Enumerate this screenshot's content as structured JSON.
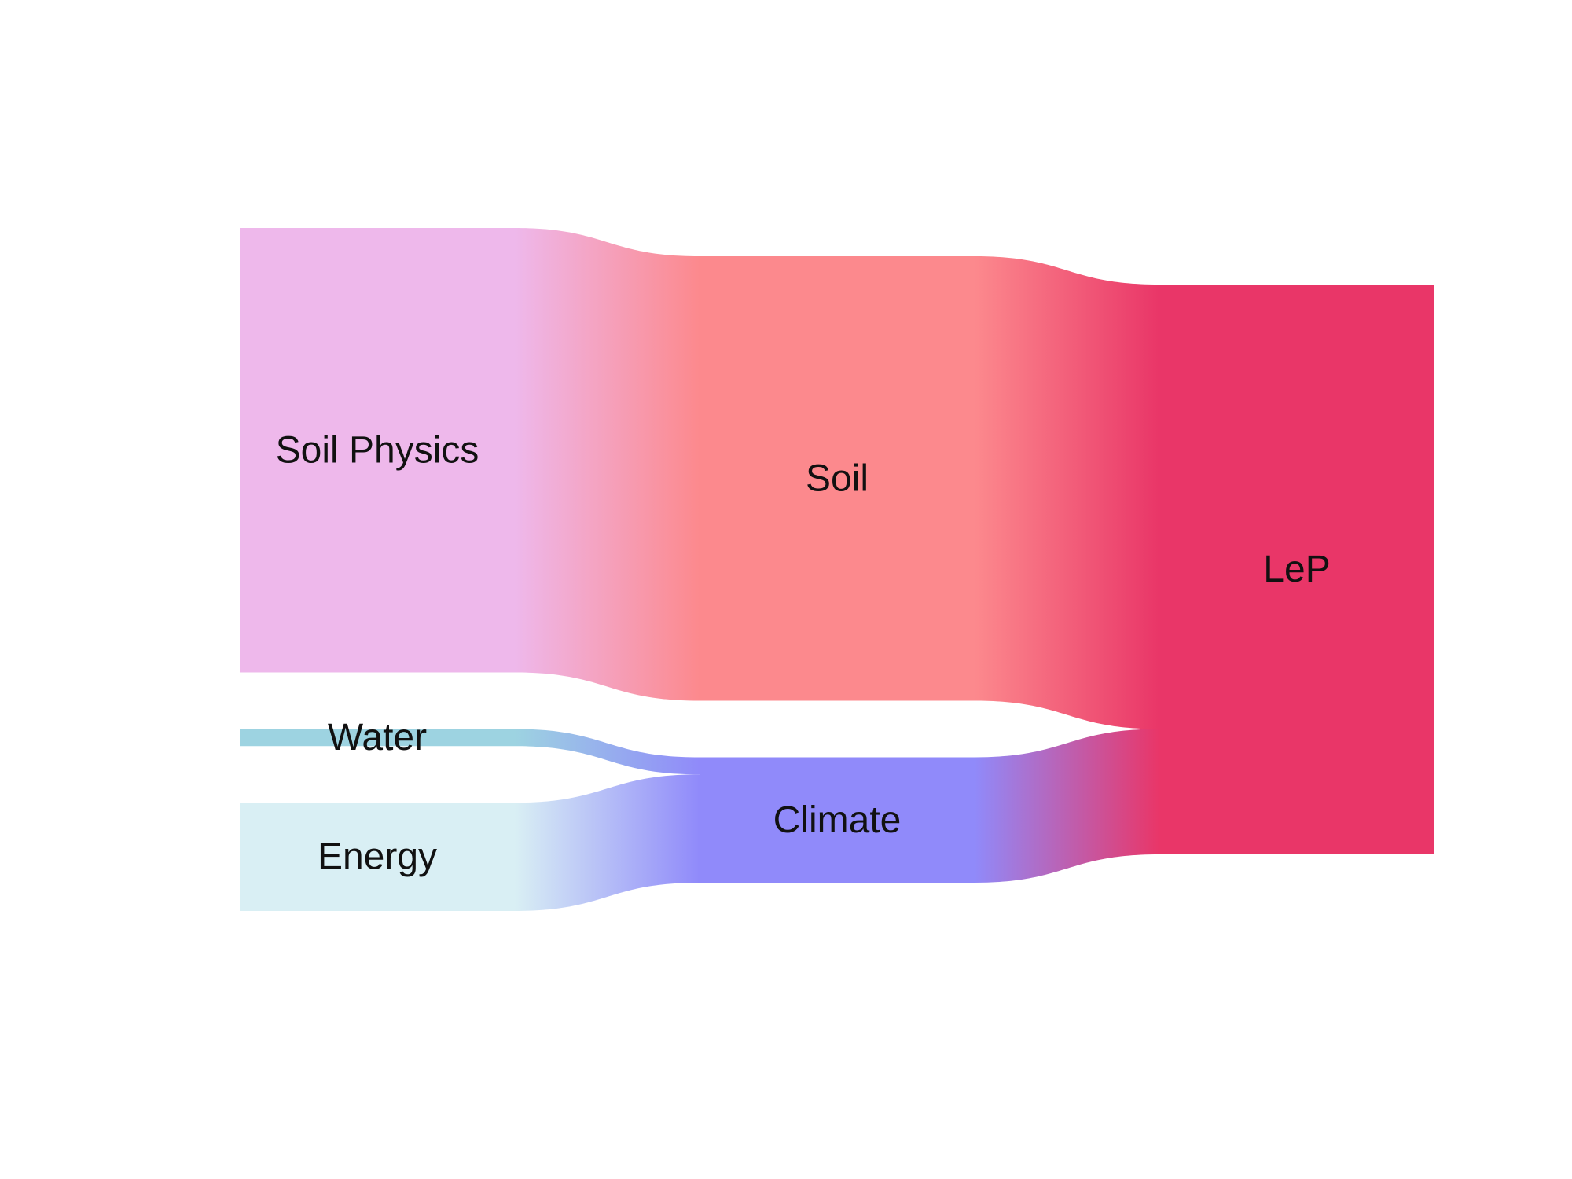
{
  "chart_data": {
    "type": "sankey",
    "nodes": [
      {
        "id": "soil_physics",
        "label": "Soil Physics",
        "column": 0,
        "color": "#EEB8EB"
      },
      {
        "id": "water",
        "label": "Water",
        "column": 0,
        "color": "#9DD3E1"
      },
      {
        "id": "energy",
        "label": "Energy",
        "column": 0,
        "color": "#D9EFF4"
      },
      {
        "id": "soil",
        "label": "Soil",
        "column": 1,
        "color": "#FC898D"
      },
      {
        "id": "climate",
        "label": "Climate",
        "column": 1,
        "color": "#908AFA"
      },
      {
        "id": "lep",
        "label": "LeP",
        "column": 2,
        "color": "#E93668"
      }
    ],
    "links": [
      {
        "source": "soil_physics",
        "target": "soil",
        "value": 0.78
      },
      {
        "source": "water",
        "target": "climate",
        "value": 0.03
      },
      {
        "source": "energy",
        "target": "climate",
        "value": 0.19
      },
      {
        "source": "soil",
        "target": "lep",
        "value": 0.78
      },
      {
        "source": "climate",
        "target": "lep",
        "value": 0.22
      }
    ]
  }
}
